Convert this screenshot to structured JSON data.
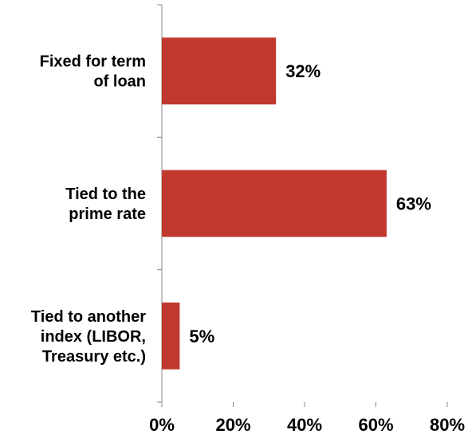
{
  "chart_data": {
    "type": "bar",
    "orientation": "horizontal",
    "categories": [
      [
        "Fixed for term",
        "of loan"
      ],
      [
        "Tied to the",
        "prime rate"
      ],
      [
        "Tied to another",
        "index (LIBOR,",
        "Treasury etc.)"
      ]
    ],
    "values": [
      32,
      63,
      5
    ],
    "data_labels": [
      "32%",
      "63%",
      "5%"
    ],
    "xlim": [
      0,
      80
    ],
    "xticks": [
      0,
      20,
      40,
      60,
      80
    ],
    "xtick_labels": [
      "0%",
      "20%",
      "40%",
      "60%",
      "80%"
    ],
    "title": "",
    "xlabel": "",
    "ylabel": "",
    "grid": false,
    "legend": "none",
    "bar_color": "#c0392f"
  }
}
